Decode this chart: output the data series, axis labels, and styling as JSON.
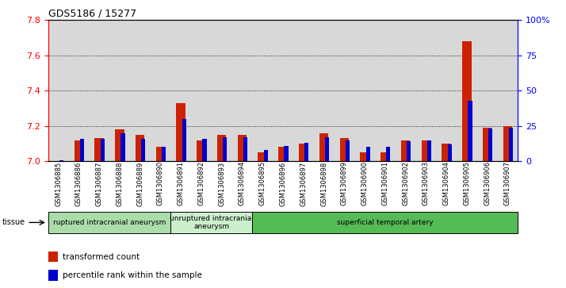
{
  "title": "GDS5186 / 15277",
  "samples": [
    "GSM1306885",
    "GSM1306886",
    "GSM1306887",
    "GSM1306888",
    "GSM1306889",
    "GSM1306890",
    "GSM1306891",
    "GSM1306892",
    "GSM1306893",
    "GSM1306894",
    "GSM1306895",
    "GSM1306896",
    "GSM1306897",
    "GSM1306898",
    "GSM1306899",
    "GSM1306900",
    "GSM1306901",
    "GSM1306902",
    "GSM1306903",
    "GSM1306904",
    "GSM1306905",
    "GSM1306906",
    "GSM1306907"
  ],
  "red_values": [
    7.0,
    7.12,
    7.13,
    7.18,
    7.15,
    7.08,
    7.33,
    7.12,
    7.15,
    7.15,
    7.05,
    7.08,
    7.1,
    7.16,
    7.13,
    7.05,
    7.05,
    7.12,
    7.12,
    7.1,
    7.68,
    7.19,
    7.2
  ],
  "blue_values": [
    1,
    16,
    16,
    20,
    16,
    10,
    30,
    16,
    17,
    17,
    8,
    11,
    13,
    17,
    15,
    10,
    10,
    14,
    15,
    12,
    43,
    23,
    24
  ],
  "ylim_left": [
    7.0,
    7.8
  ],
  "ylim_right": [
    0,
    100
  ],
  "yticks_left": [
    7.0,
    7.2,
    7.4,
    7.6,
    7.8
  ],
  "yticks_right": [
    0,
    25,
    50,
    75,
    100
  ],
  "ytick_labels_right": [
    "0",
    "25",
    "50",
    "75",
    "100%"
  ],
  "groups": [
    {
      "label": "ruptured intracranial aneurysm",
      "start": 0,
      "end": 6,
      "color": "#aaddaa"
    },
    {
      "label": "unruptured intracranial\naneurysm",
      "start": 6,
      "end": 10,
      "color": "#cceecc"
    },
    {
      "label": "superficial temporal artery",
      "start": 10,
      "end": 23,
      "color": "#55bb55"
    }
  ],
  "tissue_label": "tissue",
  "legend_red": "transformed count",
  "legend_blue": "percentile rank within the sample",
  "red_color": "#cc2200",
  "blue_color": "#0000cc",
  "bg_color": "#d8d8d8",
  "grid_color": "#555555"
}
